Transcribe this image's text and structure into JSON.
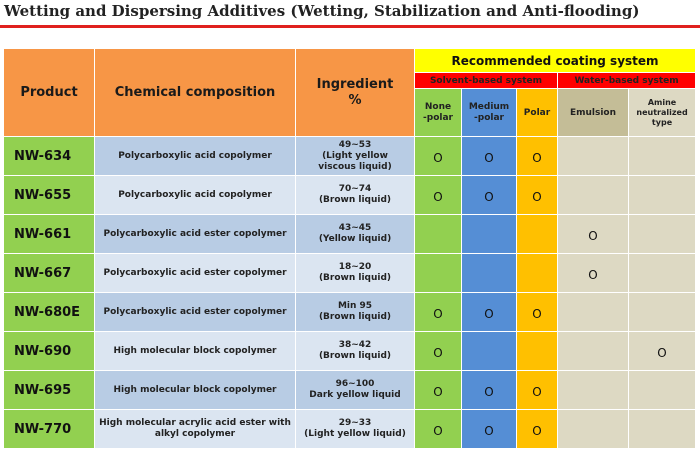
{
  "title": "Wetting and Dispersing Additives (Wetting, Stabilization and Anti-flooding)",
  "colors": {
    "title_rule": "#e0201e",
    "header_orange": "#f79646",
    "header_yellow": "#ffff00",
    "header_red": "#ff0000",
    "green": "#92d050",
    "blue": "#558ed5",
    "orange": "#ffc000",
    "tan": "#ddd9c3"
  },
  "header": {
    "product": "Product",
    "chemical": "Chemical composition",
    "ingredient_line1": "Ingredient",
    "ingredient_line2": "%",
    "recommended": "Recommended coating system",
    "solvent": "Solvent-based system",
    "water": "Water-based system",
    "none_polar_1": "None",
    "none_polar_2": "-polar",
    "medium_polar_1": "Medium",
    "medium_polar_2": "-polar",
    "polar": "Polar",
    "emulsion": "Emulsion",
    "amine_1": "Amine",
    "amine_2": "neutralized",
    "amine_3": "type"
  },
  "rows": [
    {
      "product": "NW-634",
      "chem": [
        "Polycarboxylic acid copolymer"
      ],
      "ingr": [
        "49~53",
        "(Light yellow",
        "viscous liquid)"
      ],
      "marks": [
        "O",
        "O",
        "O",
        "",
        ""
      ]
    },
    {
      "product": "NW-655",
      "chem": [
        "Polycarboxylic acid copolymer"
      ],
      "ingr": [
        "70~74",
        "(Brown liquid)"
      ],
      "marks": [
        "O",
        "O",
        "O",
        "",
        ""
      ]
    },
    {
      "product": "NW-661",
      "chem": [
        "Polycarboxylic acid ester copolymer"
      ],
      "ingr": [
        "43~45",
        "(Yellow liquid)"
      ],
      "marks": [
        "",
        "",
        "",
        "O",
        ""
      ]
    },
    {
      "product": "NW-667",
      "chem": [
        "Polycarboxylic acid ester copolymer"
      ],
      "ingr": [
        "18~20",
        "(Brown liquid)"
      ],
      "marks": [
        "",
        "",
        "",
        "O",
        ""
      ]
    },
    {
      "product": "NW-680E",
      "chem": [
        "Polycarboxylic acid ester copolymer"
      ],
      "ingr": [
        "Min 95",
        "(Brown liquid)"
      ],
      "marks": [
        "O",
        "O",
        "O",
        "",
        ""
      ]
    },
    {
      "product": "NW-690",
      "chem": [
        "High molecular block copolymer"
      ],
      "ingr": [
        "38~42",
        "(Brown liquid)"
      ],
      "marks": [
        "O",
        "",
        "",
        "",
        "O"
      ]
    },
    {
      "product": "NW-695",
      "chem": [
        "High molecular block copolymer"
      ],
      "ingr": [
        "96~100",
        "Dark yellow liquid"
      ],
      "marks": [
        "O",
        "O",
        "O",
        "",
        ""
      ]
    },
    {
      "product": "NW-770",
      "chem": [
        "High molecular acrylic acid ester with",
        "alkyl copolymer"
      ],
      "ingr": [
        "29~33",
        "(Light yellow liquid)"
      ],
      "marks": [
        "O",
        "O",
        "O",
        "",
        ""
      ]
    }
  ]
}
